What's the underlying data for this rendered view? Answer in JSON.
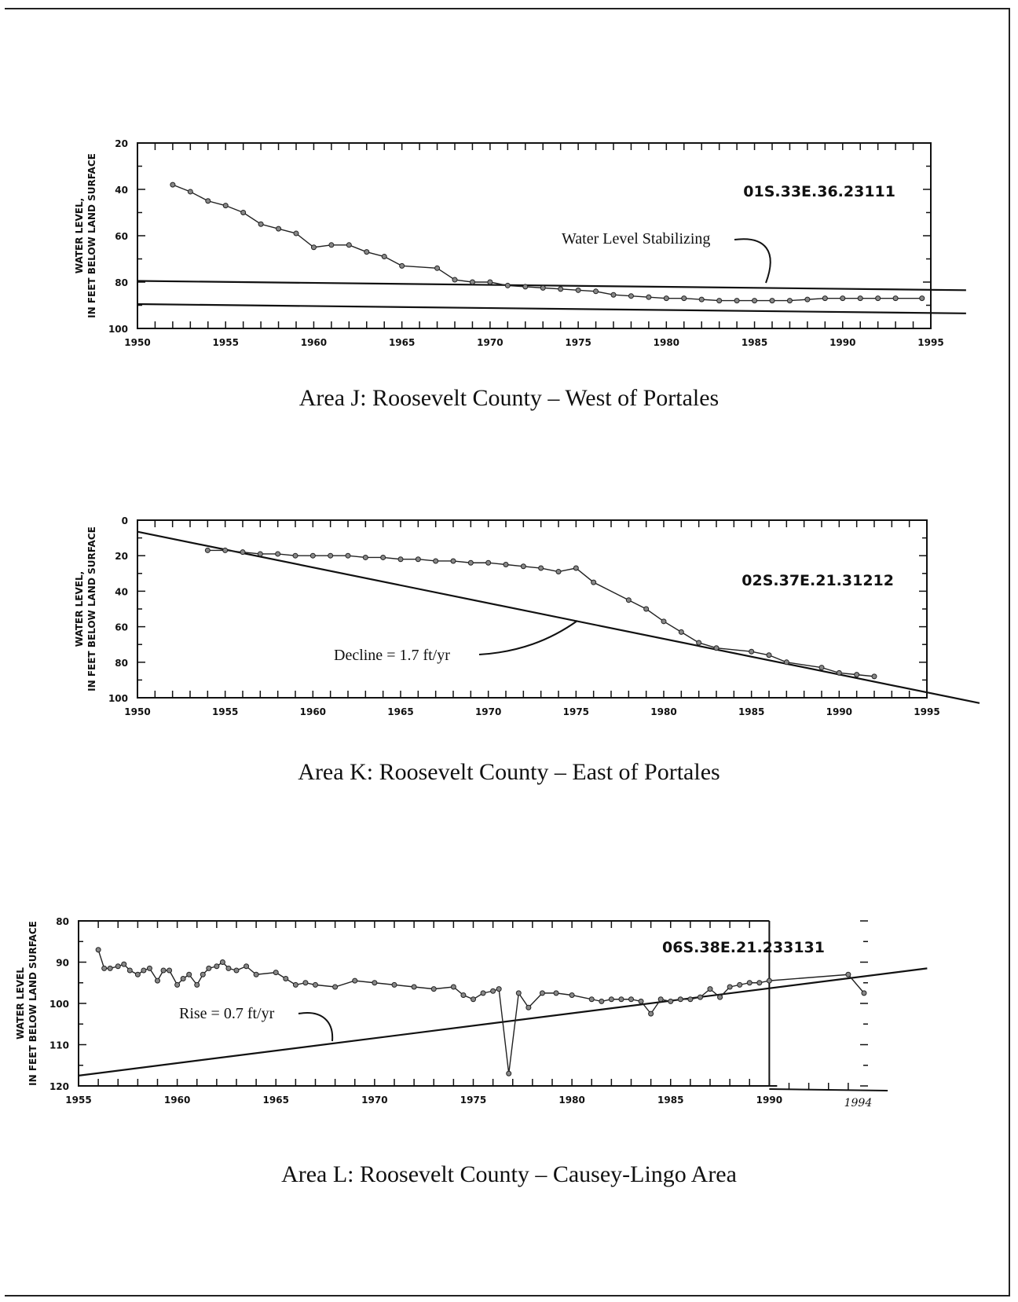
{
  "chart_data": [
    {
      "type": "line",
      "station": "01S.33E.36.23111",
      "caption": "Area J: Roosevelt County – West of Portales",
      "ylabel": [
        "WATER LEVEL,",
        "IN FEET BELOW LAND SURFACE"
      ],
      "xlim": [
        1950,
        1995
      ],
      "ylim": [
        20,
        100
      ],
      "yticks": [
        20,
        40,
        60,
        80,
        100
      ],
      "xticks": [
        1950,
        1955,
        1960,
        1965,
        1970,
        1975,
        1980,
        1985,
        1990,
        1995
      ],
      "annotation": "Water Level Stabilizing",
      "series": [
        {
          "x": [
            1952,
            1953,
            1954,
            1955,
            1956,
            1957,
            1958,
            1959,
            1960,
            1961,
            1962,
            1963,
            1964,
            1965,
            1967,
            1968,
            1969,
            1970,
            1971,
            1972,
            1973,
            1974,
            1975,
            1976,
            1977,
            1978,
            1979,
            1980,
            1981,
            1982,
            1983,
            1984,
            1985,
            1986,
            1987,
            1988,
            1989,
            1990,
            1991,
            1992,
            1993,
            1994.5
          ],
          "y": [
            38,
            41,
            45,
            47,
            50,
            55,
            57,
            59,
            65,
            64,
            64,
            67,
            69,
            73,
            74,
            79,
            80,
            80,
            81.5,
            82,
            82.5,
            83,
            83.5,
            84,
            85.5,
            86,
            86.5,
            87,
            87,
            87.5,
            88,
            88,
            88,
            88,
            88,
            87.5,
            87,
            87,
            87,
            87,
            87,
            87
          ]
        }
      ],
      "reference_lines": [
        {
          "x": [
            1950,
            1997
          ],
          "y": [
            79.5,
            83.5
          ]
        },
        {
          "x": [
            1950,
            1997
          ],
          "y": [
            89.5,
            93.5
          ]
        }
      ]
    },
    {
      "type": "line",
      "station": "02S.37E.21.31212",
      "caption": "Area K: Roosevelt County – East of Portales",
      "ylabel": [
        "WATER LEVEL,",
        "IN FEET BELOW LAND SURFACE"
      ],
      "xlim": [
        1950,
        1995
      ],
      "ylim": [
        0,
        100
      ],
      "yticks": [
        0,
        20,
        40,
        60,
        80,
        100
      ],
      "xticks": [
        1950,
        1955,
        1960,
        1965,
        1970,
        1975,
        1980,
        1985,
        1990,
        1995
      ],
      "annotation": "Decline = 1.7 ft/yr",
      "series": [
        {
          "x": [
            1954,
            1955,
            1956,
            1957,
            1958,
            1959,
            1960,
            1961,
            1962,
            1963,
            1964,
            1965,
            1966,
            1967,
            1968,
            1969,
            1970,
            1971,
            1972,
            1973,
            1974,
            1975,
            1976,
            1978,
            1979,
            1980,
            1981,
            1982,
            1983,
            1985,
            1986,
            1987,
            1989,
            1990,
            1991,
            1992
          ],
          "y": [
            17,
            17,
            18,
            19,
            19,
            20,
            20,
            20,
            20,
            21,
            21,
            22,
            22,
            23,
            23,
            24,
            24,
            25,
            26,
            27,
            29,
            27,
            35,
            45,
            50,
            57,
            63,
            69,
            72,
            74,
            76,
            80,
            83,
            86,
            87,
            88
          ]
        }
      ],
      "reference_lines": [
        {
          "x": [
            1950,
            1998
          ],
          "y": [
            6.5,
            103
          ]
        }
      ]
    },
    {
      "type": "line",
      "station": "06S.38E.21.233131",
      "caption": "Area L: Roosevelt County – Causey-Lingo Area",
      "ylabel": [
        "WATER LEVEL",
        "IN FEET BELOW LAND SURFACE"
      ],
      "xlim": [
        1955,
        1995
      ],
      "ylim": [
        80,
        120
      ],
      "yticks": [
        80,
        90,
        100,
        110,
        120
      ],
      "xticks": [
        1955,
        1960,
        1965,
        1970,
        1975,
        1980,
        1985,
        1990
      ],
      "xtick_labels": [
        "1955",
        "1960",
        "1965",
        "1970",
        "1975",
        "1980",
        "1985",
        "1990"
      ],
      "handwritten_tick": "1994",
      "annotation": "Rise = 0.7 ft/yr",
      "series": [
        {
          "x": [
            1956,
            1956.3,
            1956.6,
            1957,
            1957.3,
            1957.6,
            1958,
            1958.3,
            1958.6,
            1959,
            1959.3,
            1959.6,
            1960,
            1960.3,
            1960.6,
            1961,
            1961.3,
            1961.6,
            1962,
            1962.3,
            1962.6,
            1963,
            1963.5,
            1964,
            1965,
            1965.5,
            1966,
            1966.5,
            1967,
            1968,
            1969,
            1970,
            1971,
            1972,
            1973,
            1974,
            1974.5,
            1975,
            1975.5,
            1976,
            1976.3,
            1976.8,
            1977.3,
            1977.8,
            1978.5,
            1979.2,
            1980,
            1981,
            1981.5,
            1982,
            1982.5,
            1983,
            1983.5,
            1984,
            1984.5,
            1985,
            1985.5,
            1986,
            1986.5,
            1987,
            1987.5,
            1988,
            1988.5,
            1989,
            1989.5,
            1990,
            1994,
            1994.8
          ],
          "y": [
            87,
            91.5,
            91.5,
            91,
            90.5,
            92,
            93,
            92,
            91.5,
            94.5,
            92,
            92,
            95.5,
            94,
            93,
            95.5,
            93,
            91.5,
            91,
            90,
            91.5,
            92,
            91,
            93,
            92.5,
            94,
            95.5,
            95,
            95.5,
            96,
            94.5,
            95,
            95.5,
            96,
            96.5,
            96,
            98,
            99,
            97.5,
            97,
            96.5,
            117,
            97.5,
            101,
            97.5,
            97.5,
            98,
            99,
            99.5,
            99,
            99,
            99,
            99.5,
            102.5,
            99,
            99.5,
            99,
            99,
            98.5,
            96.5,
            98.5,
            96,
            95.5,
            95,
            95,
            94.5,
            93,
            97.5
          ]
        }
      ],
      "reference_lines": [
        {
          "x": [
            1955,
            1998
          ],
          "y": [
            117.5,
            91.5
          ]
        }
      ]
    }
  ]
}
